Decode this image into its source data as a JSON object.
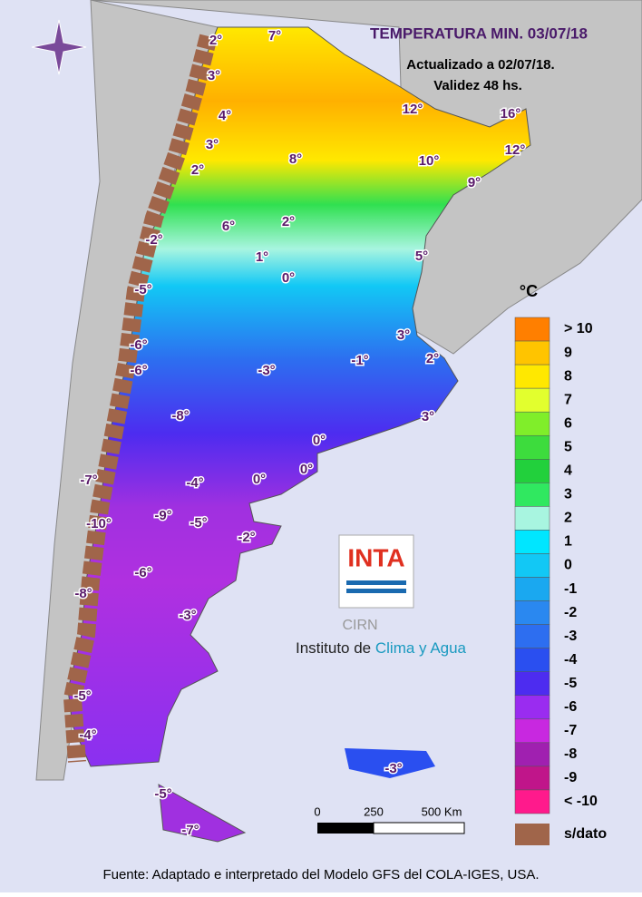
{
  "header": {
    "title": "TEMPERATURA MIN. 03/07/18",
    "updated": "Actualizado a 02/07/18.",
    "validity": "Validez 48 hs."
  },
  "legend": {
    "unit": "°C",
    "items": [
      {
        "label": "> 10",
        "color": "#ff7f00"
      },
      {
        "label": "9",
        "color": "#ffc400"
      },
      {
        "label": "8",
        "color": "#ffe800"
      },
      {
        "label": "7",
        "color": "#e2ff2e"
      },
      {
        "label": "6",
        "color": "#80ee2a"
      },
      {
        "label": "5",
        "color": "#3ddc3d"
      },
      {
        "label": "4",
        "color": "#22d03c"
      },
      {
        "label": "3",
        "color": "#30e860"
      },
      {
        "label": "2",
        "color": "#a8f5e0"
      },
      {
        "label": "1",
        "color": "#00e6ff"
      },
      {
        "label": "0",
        "color": "#12c8f5"
      },
      {
        "label": "-1",
        "color": "#1aa8f0"
      },
      {
        "label": "-2",
        "color": "#2a88f0"
      },
      {
        "label": "-3",
        "color": "#2d6ef0"
      },
      {
        "label": "-4",
        "color": "#2a4ff0"
      },
      {
        "label": "-5",
        "color": "#4d2cf0"
      },
      {
        "label": "-6",
        "color": "#9a2cf0"
      },
      {
        "label": "-7",
        "color": "#c828e0"
      },
      {
        "label": "-8",
        "color": "#a020b0"
      },
      {
        "label": "-9",
        "color": "#c0158a"
      },
      {
        "label": "< -10",
        "color": "#ff1a8c"
      }
    ],
    "nodata": "s/dato"
  },
  "scale": {
    "labels": [
      "0",
      "250",
      "500 Km"
    ]
  },
  "logo": {
    "name": "INTA",
    "center": "CIRN",
    "institute": "Instituto de ",
    "institute_highlight": "Clima y Agua"
  },
  "map_labels": [
    "2°",
    "7°",
    "3°",
    "4°",
    "3°",
    "2°",
    "6°",
    "2°",
    "8°",
    "12°",
    "16°",
    "12°",
    "10°",
    "9°",
    "5°",
    "1°",
    "0°",
    "-2°",
    "-5°",
    "3°",
    "2°",
    "-1°",
    "-3°",
    "-6°",
    "-6°",
    "-8°",
    "3°",
    "0°",
    "0°",
    "0°",
    "-4°",
    "-7°",
    "-10°",
    "-9°",
    "-5°",
    "-2°",
    "-6°",
    "-8°",
    "-3°",
    "-5°",
    "-4°",
    "-3°",
    "-5°",
    "-7°"
  ],
  "footer": "Fuente: Adaptado e interpretado del Modelo GFS del COLA-IGES, USA."
}
